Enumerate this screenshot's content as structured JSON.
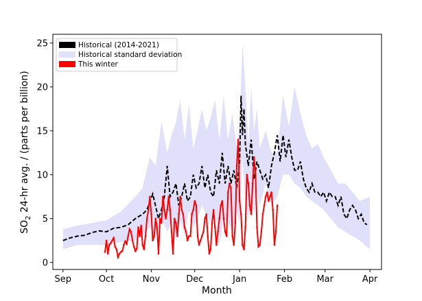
{
  "chart_data": {
    "type": "line",
    "xlabel": "Month",
    "ylabel_prefix": "SO",
    "ylabel_sub": "2",
    "ylabel_suffix": " 24-hr avg. / (parts per billion)",
    "ylim": [
      -0.8,
      26
    ],
    "xlim": [
      -7,
      220
    ],
    "x_unit": "days since Sep 1",
    "x_ticks": [
      {
        "label": "Sep",
        "value": 0
      },
      {
        "label": "Oct",
        "value": 30
      },
      {
        "label": "Nov",
        "value": 61
      },
      {
        "label": "Dec",
        "value": 91
      },
      {
        "label": "Jan",
        "value": 122
      },
      {
        "label": "Feb",
        "value": 153
      },
      {
        "label": "Mar",
        "value": 181
      },
      {
        "label": "Apr",
        "value": 212
      }
    ],
    "y_ticks": [
      0,
      5,
      10,
      15,
      20,
      25
    ],
    "legend_position": "top-left",
    "legend": [
      {
        "label": "Historical (2014-2021)",
        "color": "#000000"
      },
      {
        "label": "Historical standard deviation",
        "color": "#e0e0fa"
      },
      {
        "label": "This winter",
        "color": "#ff0000"
      }
    ],
    "series": [
      {
        "name": "Historical standard deviation",
        "style": "band",
        "color": "#e0e0fa",
        "x": [
          0,
          10,
          20,
          30,
          40,
          50,
          55,
          60,
          64,
          68,
          72,
          75,
          78,
          81,
          84,
          87,
          90,
          93,
          96,
          99,
          102,
          105,
          108,
          111,
          114,
          117,
          120,
          122,
          124,
          126,
          128,
          130,
          132,
          134,
          136,
          140,
          144,
          148,
          152,
          156,
          160,
          164,
          168,
          172,
          176,
          180,
          185,
          190,
          195,
          200,
          205,
          212
        ],
        "upper": [
          3.8,
          4.2,
          4.5,
          4.8,
          5.8,
          7.5,
          8.5,
          12.0,
          11.0,
          16.0,
          12.5,
          14.5,
          16.0,
          18.5,
          14.0,
          18.0,
          13.0,
          15.0,
          17.5,
          15.0,
          16.5,
          18.5,
          14.0,
          19.0,
          14.0,
          17.0,
          13.0,
          16.0,
          25.0,
          20.0,
          13.5,
          20.0,
          15.0,
          17.5,
          13.0,
          15.0,
          12.5,
          12.5,
          19.0,
          15.5,
          20.0,
          17.0,
          14.5,
          13.0,
          13.5,
          12.0,
          10.5,
          9.0,
          9.0,
          8.0,
          7.0,
          7.5
        ],
        "lower": [
          1.5,
          2.0,
          2.0,
          2.0,
          2.3,
          2.5,
          3.0,
          4.0,
          3.0,
          5.0,
          3.5,
          4.5,
          2.5,
          5.0,
          3.0,
          6.0,
          4.0,
          5.0,
          6.5,
          5.5,
          4.5,
          6.0,
          2.0,
          5.0,
          4.5,
          3.5,
          6.0,
          4.5,
          12.0,
          6.5,
          5.0,
          7.0,
          5.5,
          8.0,
          6.5,
          9.0,
          6.5,
          7.5,
          10.0,
          10.0,
          9.0,
          8.5,
          7.5,
          7.0,
          6.5,
          6.0,
          5.0,
          4.0,
          3.5,
          3.0,
          2.5,
          1.5
        ]
      },
      {
        "name": "Historical (2014-2021)",
        "style": "dashed",
        "color": "#000000",
        "x": [
          0,
          5,
          10,
          15,
          20,
          25,
          30,
          35,
          40,
          45,
          50,
          55,
          58,
          62,
          66,
          68,
          70,
          72,
          74,
          76,
          78,
          80,
          82,
          84,
          86,
          88,
          90,
          92,
          94,
          96,
          98,
          100,
          102,
          104,
          106,
          108,
          110,
          112,
          114,
          116,
          118,
          120,
          122,
          123,
          124,
          125,
          126,
          128,
          130,
          132,
          134,
          136,
          138,
          140,
          142,
          144,
          146,
          148,
          150,
          152,
          154,
          156,
          158,
          160,
          162,
          164,
          166,
          168,
          170,
          172,
          174,
          176,
          178,
          180,
          182,
          184,
          186,
          188,
          190,
          192,
          194,
          196,
          198,
          200,
          202,
          204,
          206,
          208,
          210
        ],
        "y": [
          2.5,
          2.8,
          3.0,
          3.1,
          3.4,
          3.6,
          3.5,
          3.9,
          4.0,
          4.3,
          5.0,
          5.5,
          6.0,
          7.8,
          5.0,
          6.0,
          7.5,
          11.0,
          7.5,
          8.0,
          9.0,
          6.5,
          7.5,
          9.0,
          7.0,
          7.5,
          10.0,
          8.5,
          9.0,
          11.0,
          8.5,
          10.0,
          8.0,
          7.5,
          10.5,
          9.0,
          12.5,
          9.0,
          11.0,
          9.0,
          10.5,
          8.5,
          11.5,
          19.0,
          14.5,
          17.5,
          13.5,
          11.0,
          14.0,
          9.5,
          11.5,
          10.5,
          9.5,
          10.0,
          8.5,
          11.0,
          12.5,
          14.5,
          11.5,
          14.5,
          12.0,
          14.0,
          12.0,
          10.5,
          10.5,
          11.5,
          9.5,
          8.5,
          8.0,
          9.0,
          8.0,
          8.0,
          7.5,
          8.0,
          7.0,
          8.0,
          7.5,
          7.5,
          6.5,
          7.5,
          5.5,
          5.0,
          6.0,
          6.5,
          6.0,
          5.0,
          5.5,
          4.5,
          4.3
        ]
      },
      {
        "name": "This winter",
        "style": "solid-markers",
        "color": "#ff0000",
        "x": [
          29,
          30,
          31,
          32,
          33,
          34,
          35,
          36,
          37,
          38,
          39,
          40,
          41,
          42,
          43,
          44,
          45,
          46,
          47,
          48,
          49,
          50,
          51,
          52,
          53,
          54,
          55,
          56,
          57,
          58,
          59,
          60,
          61,
          62,
          63,
          64,
          65,
          66,
          67,
          68,
          69,
          70,
          71,
          72,
          73,
          74,
          75,
          76,
          77,
          78,
          79,
          80,
          81,
          82,
          83,
          84,
          85,
          86,
          87,
          88,
          89,
          90,
          91,
          92,
          93,
          94,
          95,
          96,
          97,
          98,
          99,
          100,
          101,
          102,
          103,
          104,
          105,
          106,
          107,
          108,
          109,
          110,
          111,
          112,
          113,
          114,
          115,
          116,
          117,
          118,
          119,
          120,
          121,
          122,
          123,
          124,
          125,
          126,
          127,
          128,
          129,
          130,
          131,
          132,
          133,
          134,
          135,
          136,
          137,
          138,
          139,
          140,
          141,
          142,
          143,
          144,
          145,
          146,
          147,
          148
        ],
        "y": [
          1.2,
          2.5,
          1.0,
          2.0,
          2.2,
          2.5,
          2.8,
          1.8,
          1.5,
          0.6,
          1.0,
          1.2,
          1.3,
          2.0,
          2.4,
          2.1,
          3.0,
          3.8,
          3.5,
          2.5,
          1.8,
          1.3,
          1.6,
          4.0,
          3.0,
          4.2,
          2.0,
          1.5,
          3.0,
          5.0,
          6.0,
          7.5,
          5.5,
          2.5,
          3.0,
          5.0,
          4.0,
          1.0,
          5.0,
          4.5,
          7.5,
          6.0,
          5.0,
          6.0,
          7.5,
          6.0,
          3.5,
          1.0,
          5.0,
          4.5,
          3.0,
          5.5,
          7.5,
          6.0,
          5.5,
          4.0,
          3.5,
          2.5,
          3.0,
          3.0,
          5.5,
          6.0,
          7.0,
          6.5,
          3.0,
          2.0,
          2.5,
          3.0,
          3.5,
          5.0,
          5.5,
          3.0,
          1.0,
          1.5,
          4.5,
          6.0,
          4.0,
          2.0,
          3.5,
          5.0,
          6.5,
          7.0,
          5.0,
          3.5,
          3.0,
          8.0,
          9.0,
          8.5,
          3.0,
          2.0,
          4.5,
          11.0,
          14.0,
          7.0,
          5.5,
          2.0,
          1.5,
          4.0,
          10.0,
          9.0,
          6.5,
          5.5,
          9.0,
          12.0,
          10.0,
          4.0,
          1.8,
          2.0,
          3.5,
          5.5,
          6.5,
          7.5,
          8.0,
          7.0,
          7.5,
          8.0,
          6.0,
          2.0,
          3.5,
          6.5
        ]
      }
    ]
  }
}
